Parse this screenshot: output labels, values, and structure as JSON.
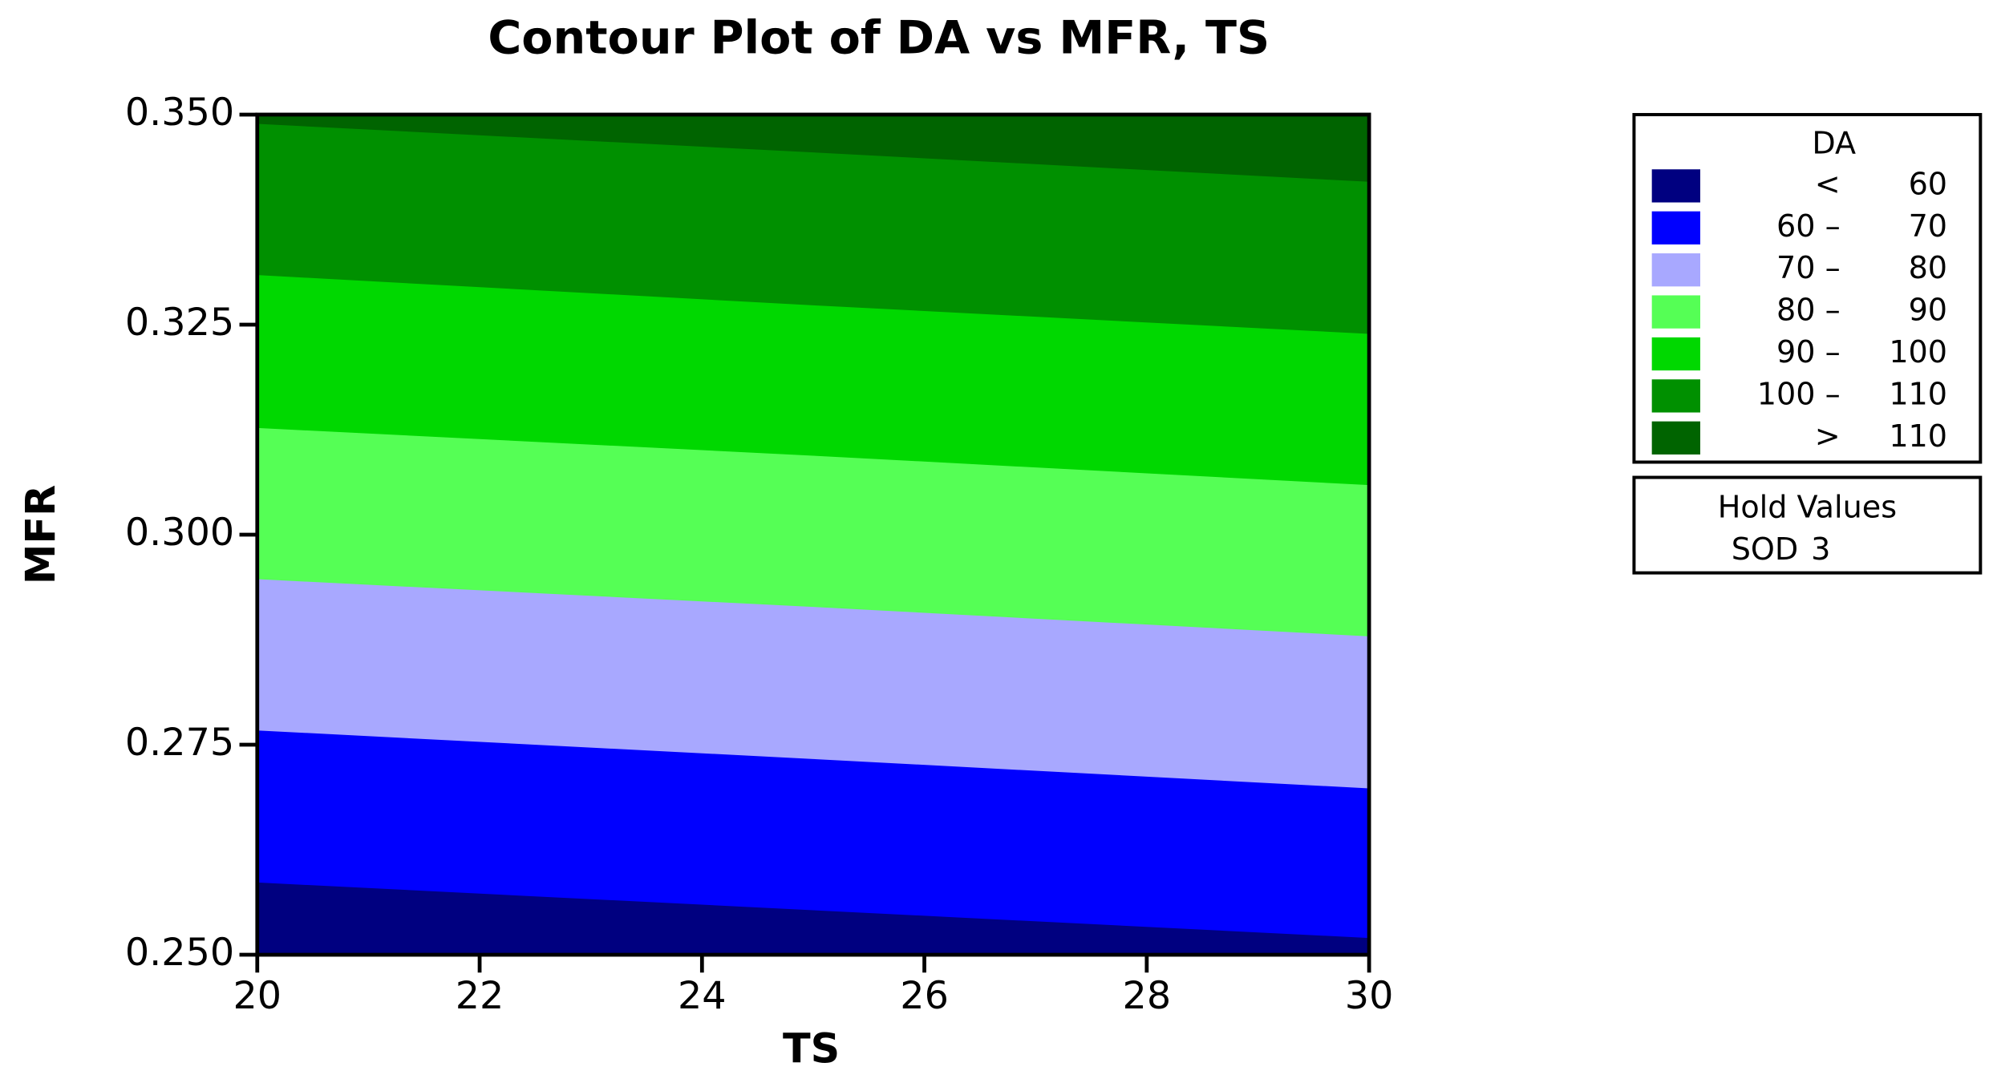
{
  "chart_data": {
    "type": "contour",
    "title": "Contour Plot of DA vs MFR, TS",
    "x_label": "TS",
    "y_label": "MFR",
    "xlim": [
      20,
      30
    ],
    "ylim": [
      0.25,
      0.35
    ],
    "xticks": [
      20,
      22,
      24,
      26,
      28,
      30
    ],
    "yticks": [
      {
        "value": 0.25,
        "label": "0.250"
      },
      0.275,
      {
        "value": 0.3,
        "label": "0.300"
      },
      0.325,
      {
        "value": 0.35,
        "label": "0.350"
      }
    ],
    "base_color": "#000080",
    "contours": [
      {
        "color": "#0000ff",
        "x": [
          20,
          25,
          30
        ],
        "y": [
          0.2586,
          0.2553,
          0.252
        ]
      },
      {
        "color": "#a8a8ff",
        "x": [
          20,
          25,
          30
        ],
        "y": [
          0.2767,
          0.2733,
          0.2698
        ]
      },
      {
        "color": "#55ff55",
        "x": [
          20,
          25,
          30
        ],
        "y": [
          0.2947,
          0.2914,
          0.2879
        ]
      },
      {
        "color": "#00d800",
        "x": [
          20,
          25,
          30
        ],
        "y": [
          0.3127,
          0.3094,
          0.3059
        ]
      },
      {
        "color": "#009000",
        "x": [
          20,
          25,
          30
        ],
        "y": [
          0.3309,
          0.3273,
          0.3239
        ]
      },
      {
        "color": "#006400",
        "x": [
          20,
          25,
          30
        ],
        "y": [
          0.3489,
          0.3455,
          0.342
        ]
      }
    ],
    "legend": {
      "title": "DA",
      "entries": [
        {
          "color": "#000080",
          "left": "<",
          "right": "60"
        },
        {
          "color": "#0000ff",
          "left": "60 –",
          "right": "70"
        },
        {
          "color": "#a8a8ff",
          "left": "70 –",
          "right": "80"
        },
        {
          "color": "#55ff55",
          "left": "80 –",
          "right": "90"
        },
        {
          "color": "#00d800",
          "left": "90 –",
          "right": "100"
        },
        {
          "color": "#009000",
          "left": "100 –",
          "right": "110"
        },
        {
          "color": "#006400",
          "left": ">",
          "right": "110"
        }
      ]
    },
    "hold_values": {
      "title": "Hold Values",
      "label": "SOD",
      "value": 3
    }
  }
}
